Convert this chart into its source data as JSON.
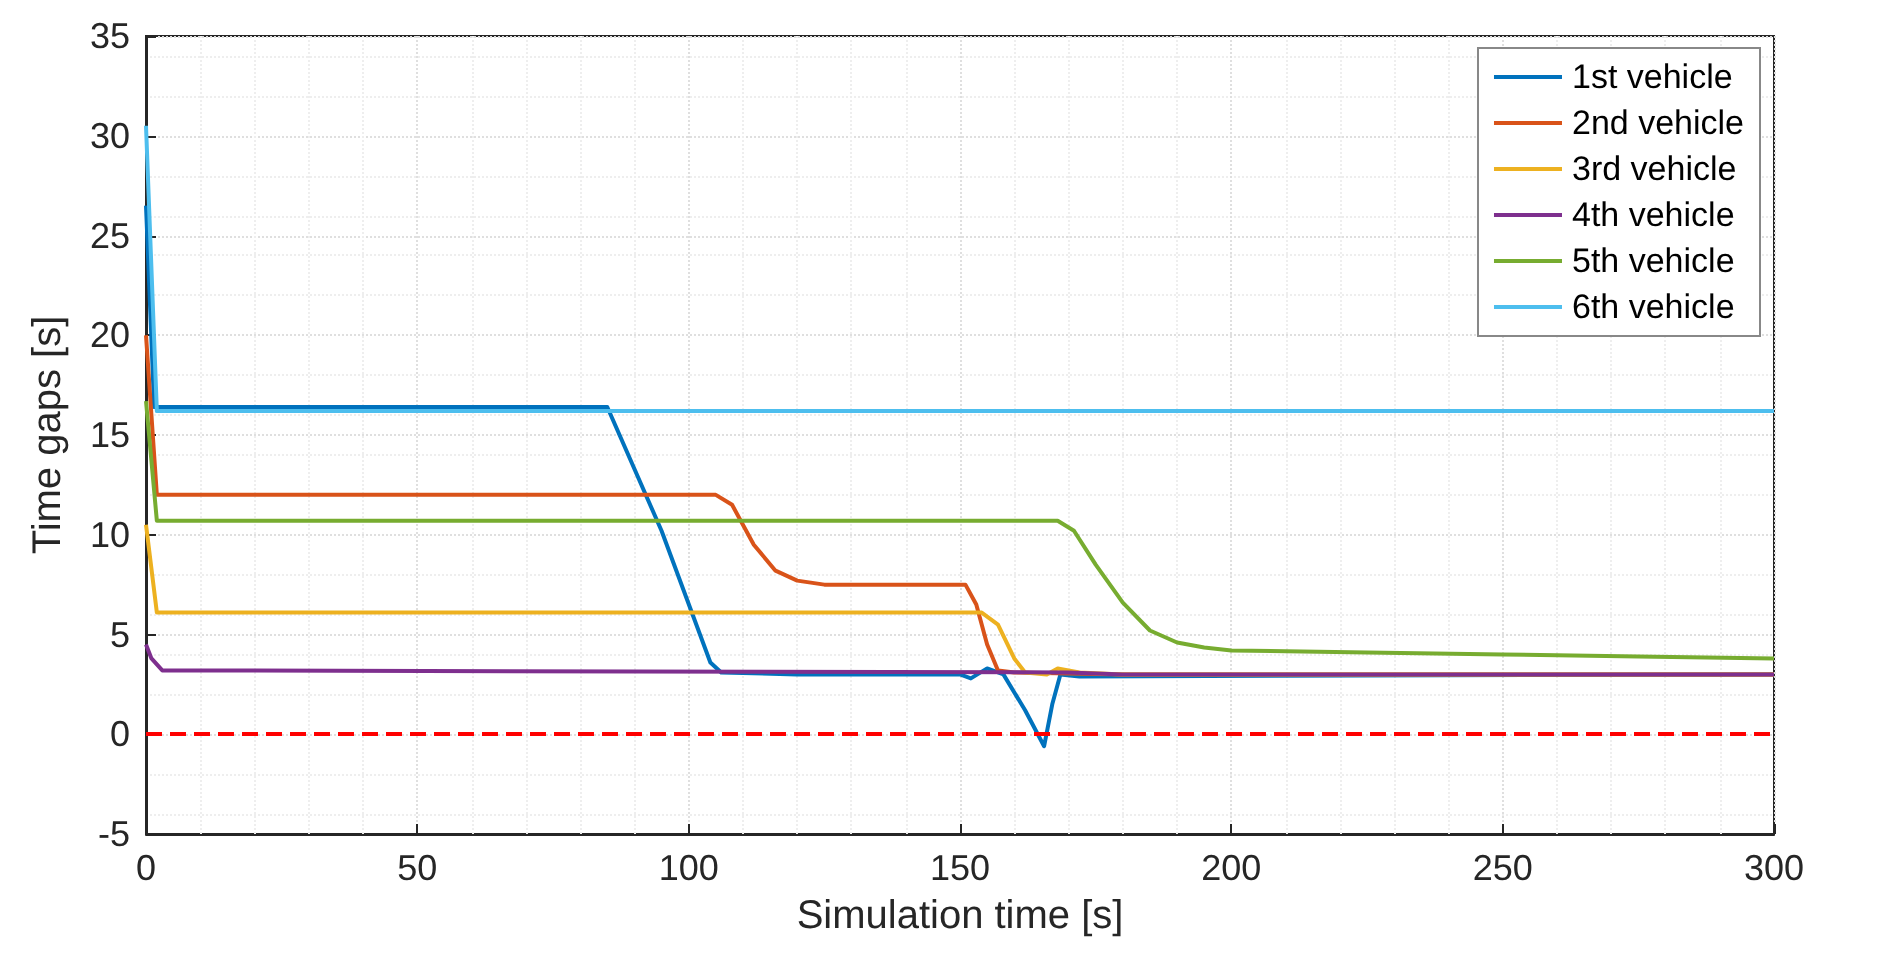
{
  "chart_data": {
    "type": "line",
    "xlabel": "Simulation time [s]",
    "ylabel": "Time gaps [s]",
    "xlim": [
      0,
      300
    ],
    "xticks": [
      0,
      50,
      100,
      150,
      200,
      250,
      300
    ],
    "ylim": [
      -5,
      35
    ],
    "yticks": [
      -5,
      0,
      5,
      10,
      15,
      20,
      25,
      30,
      35
    ],
    "grid": true,
    "legend": "top right",
    "marker": "none",
    "line_style": "solid",
    "series": [
      {
        "name": "1st vehicle",
        "color": "#0072bd",
        "x": [
          0,
          1.5,
          85,
          95,
          104,
          106,
          120,
          150,
          152,
          155,
          158,
          162,
          165.5,
          167,
          168.5,
          172,
          300
        ],
        "values": [
          26.5,
          16.4,
          16.4,
          10.2,
          3.6,
          3.1,
          3.0,
          3.0,
          2.8,
          3.3,
          3.0,
          1.2,
          -0.6,
          1.5,
          3.0,
          2.9,
          3.0
        ]
      },
      {
        "name": "2nd vehicle",
        "color": "#d95319",
        "x": [
          0,
          2,
          105,
          108,
          112,
          116,
          120,
          125,
          151,
          153,
          155,
          157,
          160,
          180,
          300
        ],
        "values": [
          20,
          12,
          12,
          11.5,
          9.5,
          8.2,
          7.7,
          7.5,
          7.5,
          6.5,
          4.5,
          3.2,
          3.1,
          3.0,
          3.0
        ]
      },
      {
        "name": "3rd vehicle",
        "color": "#edb120",
        "x": [
          0,
          2,
          154,
          157,
          160,
          162,
          166,
          168,
          172,
          180,
          300
        ],
        "values": [
          10.5,
          6.1,
          6.1,
          5.5,
          3.8,
          3.1,
          3.0,
          3.3,
          3.1,
          3.0,
          3.0
        ]
      },
      {
        "name": "4th vehicle",
        "color": "#7e2f8e",
        "x": [
          0,
          1,
          3,
          170,
          180,
          300
        ],
        "values": [
          4.5,
          3.8,
          3.2,
          3.1,
          3.0,
          3.0
        ]
      },
      {
        "name": "5th vehicle",
        "color": "#77ac30",
        "x": [
          0,
          2,
          168,
          171,
          175,
          180,
          185,
          190,
          195,
          200,
          225,
          250,
          275,
          300
        ],
        "values": [
          16.7,
          10.7,
          10.7,
          10.2,
          8.5,
          6.6,
          5.2,
          4.6,
          4.35,
          4.2,
          4.1,
          4.0,
          3.9,
          3.8
        ]
      },
      {
        "name": "6th vehicle",
        "color": "#4dbeee",
        "x": [
          0,
          2,
          300
        ],
        "values": [
          30.5,
          16.2,
          16.2
        ]
      }
    ],
    "ref_lines": [
      {
        "axis": "y",
        "value": 0,
        "color": "#ff0000",
        "line_style": "dashed"
      }
    ]
  }
}
